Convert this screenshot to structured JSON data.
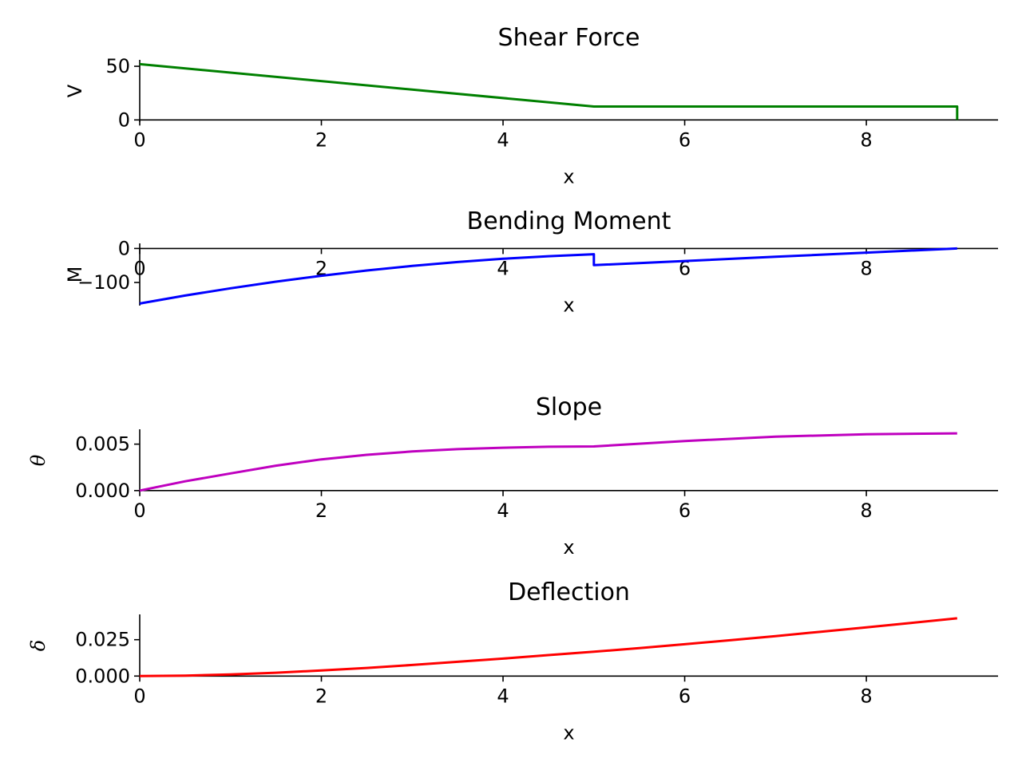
{
  "chart_data": [
    {
      "type": "line",
      "title": "Shear Force",
      "xlabel": "x",
      "ylabel": "V",
      "ylabel_style": "plain",
      "xlim": [
        0,
        9.45
      ],
      "ylim": [
        -2,
        56
      ],
      "xticks": [
        0,
        2,
        4,
        6,
        8
      ],
      "yticks": [
        0,
        50
      ],
      "ytick_labels": [
        "0",
        "50"
      ],
      "grid": false,
      "series": [
        {
          "color": "#008000",
          "x": [
            0,
            5,
            5,
            9,
            9
          ],
          "y": [
            52,
            12.5,
            12.5,
            12.5,
            0
          ]
        }
      ]
    },
    {
      "type": "line",
      "title": "Bending Moment",
      "xlabel": "x",
      "ylabel": "M",
      "ylabel_style": "plain",
      "xlim": [
        0,
        9.45
      ],
      "ylim": [
        -168,
        15
      ],
      "xticks": [
        0,
        2,
        4,
        6,
        8
      ],
      "yticks": [
        0,
        -100
      ],
      "ytick_labels": [
        "0",
        "−100"
      ],
      "grid": false,
      "series": [
        {
          "color": "#0000ff",
          "x": [
            0,
            0.5,
            1,
            1.5,
            2,
            2.5,
            3,
            3.5,
            4,
            4.5,
            5,
            5,
            6,
            7,
            8,
            9
          ],
          "y": [
            -161.8,
            -138.4,
            -117,
            -97.6,
            -80.3,
            -64.8,
            -51.4,
            -39.8,
            -30.3,
            -22.7,
            -16.9,
            -49,
            -36.8,
            -24.5,
            -12.3,
            0
          ]
        }
      ]
    },
    {
      "type": "line",
      "title": "Slope",
      "xlabel": "x",
      "ylabel": "θ",
      "ylabel_style": "italic",
      "xlim": [
        0,
        9.45
      ],
      "ylim": [
        -0.0001,
        0.0066
      ],
      "xticks": [
        0,
        2,
        4,
        6,
        8
      ],
      "yticks": [
        0,
        0.005
      ],
      "ytick_labels": [
        "0.000",
        "0.005"
      ],
      "grid": false,
      "series": [
        {
          "color": "#bf00bf",
          "x": [
            0,
            0.5,
            1,
            1.5,
            2,
            2.5,
            3,
            3.5,
            4,
            4.5,
            5,
            6,
            7,
            8,
            9
          ],
          "y": [
            0,
            0.001,
            0.00185,
            0.00268,
            0.00336,
            0.00385,
            0.00421,
            0.00446,
            0.00462,
            0.00472,
            0.00475,
            0.00534,
            0.0058,
            0.00607,
            0.00616
          ]
        }
      ]
    },
    {
      "type": "line",
      "title": "Deflection",
      "xlabel": "x",
      "ylabel": "δ",
      "ylabel_style": "italic",
      "xlim": [
        0,
        9.45
      ],
      "ylim": [
        -0.0004,
        0.0424
      ],
      "xticks": [
        0,
        2,
        4,
        6,
        8
      ],
      "yticks": [
        0,
        0.025
      ],
      "ytick_labels": [
        "0.000",
        "0.025"
      ],
      "grid": false,
      "series": [
        {
          "color": "#ff0000",
          "x": [
            0,
            0.5,
            1,
            1.5,
            2,
            2.5,
            3,
            3.5,
            4,
            4.5,
            5,
            5.5,
            6,
            6.5,
            7,
            7.5,
            8,
            8.5,
            9
          ],
          "y": [
            0,
            0.0003,
            0.0011,
            0.0023,
            0.0038,
            0.0056,
            0.0076,
            0.0098,
            0.012,
            0.0144,
            0.0167,
            0.0192,
            0.0219,
            0.0246,
            0.0275,
            0.0305,
            0.0335,
            0.0366,
            0.0397
          ]
        }
      ]
    }
  ]
}
